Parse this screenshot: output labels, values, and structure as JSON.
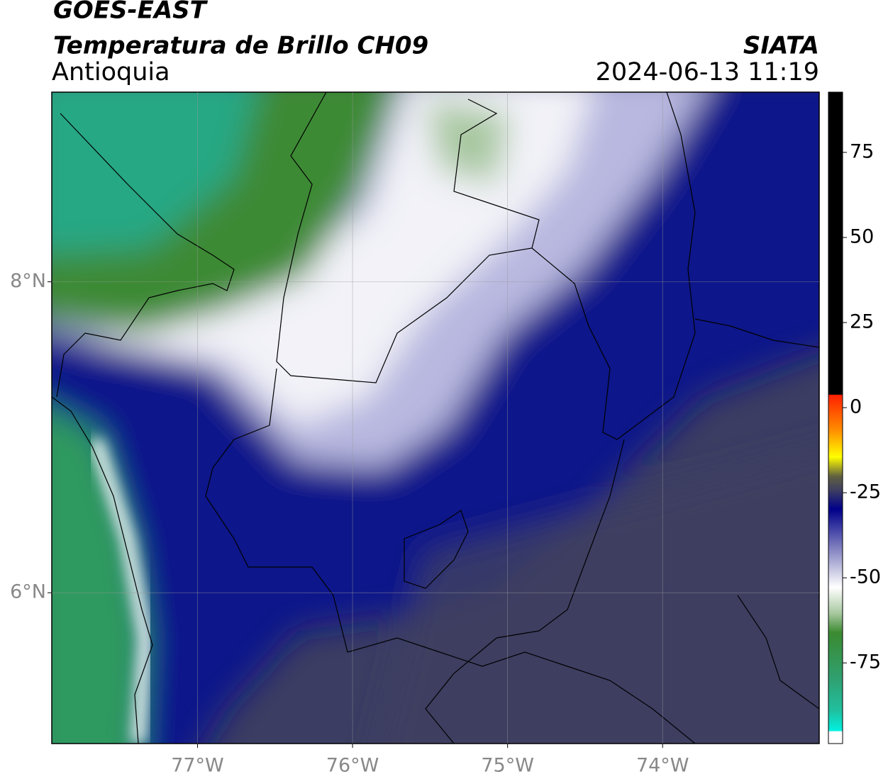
{
  "header": {
    "title": "GOES-EAST",
    "subtitle": "Temperatura de Brillo CH09",
    "region": "Antioquia",
    "source": "SIATA",
    "timestamp": "2024-06-13 11:19"
  },
  "map": {
    "xlim": [
      -77.94,
      -72.99
    ],
    "ylim": [
      5.03,
      9.22
    ],
    "xticks": [
      {
        "value": -77,
        "label": "77°W"
      },
      {
        "value": -76,
        "label": "76°W"
      },
      {
        "value": -75,
        "label": "75°W"
      },
      {
        "value": -74,
        "label": "74°W"
      }
    ],
    "yticks": [
      {
        "value": 8,
        "label": "8°N"
      },
      {
        "value": 6,
        "label": "6°N"
      }
    ],
    "grid": true
  },
  "colorbar": {
    "lim": [
      -98.7,
      92.7
    ],
    "ticks": [
      75,
      50,
      25,
      0,
      -25,
      -50,
      -75
    ]
  }
}
